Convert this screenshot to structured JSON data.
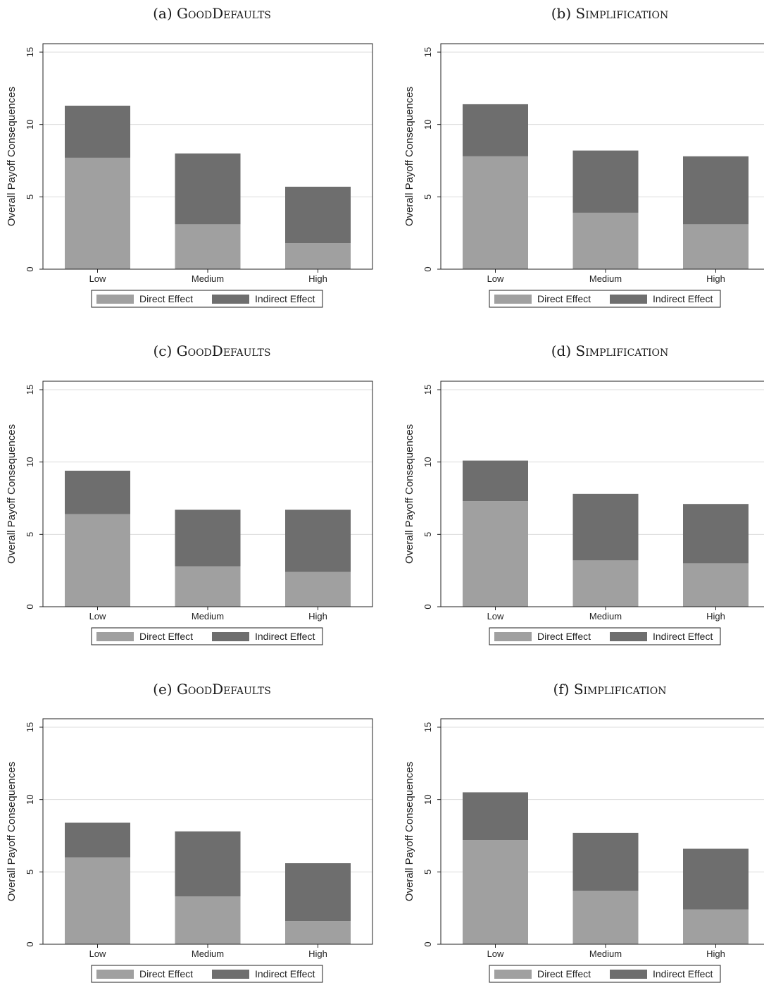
{
  "colors": {
    "direct": "#a0a0a0",
    "indirect": "#6e6e6e",
    "grid": "#dcdcdc",
    "axis": "#222222",
    "background": "#ffffff"
  },
  "chart_data": [
    {
      "id": "a",
      "type": "bar",
      "stacked": true,
      "title_prefix": "(a)",
      "title_name": "GoodDefaults",
      "ylabel": "Overall Payoff Consequences",
      "ylim": [
        0,
        15
      ],
      "yticks": [
        "0",
        "5",
        "10",
        "15"
      ],
      "grid": true,
      "legend_placement": "bottom",
      "categories": [
        "Low",
        "Medium",
        "High"
      ],
      "series": [
        {
          "name": "Direct Effect",
          "values": [
            7.7,
            3.1,
            1.8
          ]
        },
        {
          "name": "Indirect Effect",
          "values": [
            3.6,
            4.9,
            3.9
          ]
        }
      ]
    },
    {
      "id": "b",
      "type": "bar",
      "stacked": true,
      "title_prefix": "(b)",
      "title_name": "Simplification",
      "ylabel": "Overall Payoff Consequences",
      "ylim": [
        0,
        15
      ],
      "yticks": [
        "0",
        "5",
        "10",
        "15"
      ],
      "grid": true,
      "legend_placement": "bottom",
      "categories": [
        "Low",
        "Medium",
        "High"
      ],
      "series": [
        {
          "name": "Direct Effect",
          "values": [
            7.8,
            3.9,
            3.1
          ]
        },
        {
          "name": "Indirect Effect",
          "values": [
            3.6,
            4.3,
            4.7
          ]
        }
      ]
    },
    {
      "id": "c",
      "type": "bar",
      "stacked": true,
      "title_prefix": "(c)",
      "title_name": "GoodDefaults",
      "ylabel": "Overall Payoff Consequences",
      "ylim": [
        0,
        15
      ],
      "yticks": [
        "0",
        "5",
        "10",
        "15"
      ],
      "grid": true,
      "legend_placement": "bottom",
      "categories": [
        "Low",
        "Medium",
        "High"
      ],
      "series": [
        {
          "name": "Direct Effect",
          "values": [
            6.4,
            2.8,
            2.4
          ]
        },
        {
          "name": "Indirect Effect",
          "values": [
            3.0,
            3.9,
            4.3
          ]
        }
      ]
    },
    {
      "id": "d",
      "type": "bar",
      "stacked": true,
      "title_prefix": "(d)",
      "title_name": "Simplification",
      "ylabel": "Overall Payoff Consequences",
      "ylim": [
        0,
        15
      ],
      "yticks": [
        "0",
        "5",
        "10",
        "15"
      ],
      "grid": true,
      "legend_placement": "bottom",
      "categories": [
        "Low",
        "Medium",
        "High"
      ],
      "series": [
        {
          "name": "Direct Effect",
          "values": [
            7.3,
            3.2,
            3.0
          ]
        },
        {
          "name": "Indirect Effect",
          "values": [
            2.8,
            4.6,
            4.1
          ]
        }
      ]
    },
    {
      "id": "e",
      "type": "bar",
      "stacked": true,
      "title_prefix": "(e)",
      "title_name": "GoodDefaults",
      "ylabel": "Overall Payoff Consequences",
      "ylim": [
        0,
        15
      ],
      "yticks": [
        "0",
        "5",
        "10",
        "15"
      ],
      "grid": true,
      "legend_placement": "bottom",
      "categories": [
        "Low",
        "Medium",
        "High"
      ],
      "series": [
        {
          "name": "Direct Effect",
          "values": [
            6.0,
            3.3,
            1.6
          ]
        },
        {
          "name": "Indirect Effect",
          "values": [
            2.4,
            4.5,
            4.0
          ]
        }
      ]
    },
    {
      "id": "f",
      "type": "bar",
      "stacked": true,
      "title_prefix": "(f)",
      "title_name": "Simplification",
      "ylabel": "Overall Payoff Consequences",
      "ylim": [
        0,
        15
      ],
      "yticks": [
        "0",
        "5",
        "10",
        "15"
      ],
      "grid": true,
      "legend_placement": "bottom",
      "categories": [
        "Low",
        "Medium",
        "High"
      ],
      "series": [
        {
          "name": "Direct Effect",
          "values": [
            7.2,
            3.7,
            2.4
          ]
        },
        {
          "name": "Indirect Effect",
          "values": [
            3.3,
            4.0,
            4.2
          ]
        }
      ]
    }
  ]
}
